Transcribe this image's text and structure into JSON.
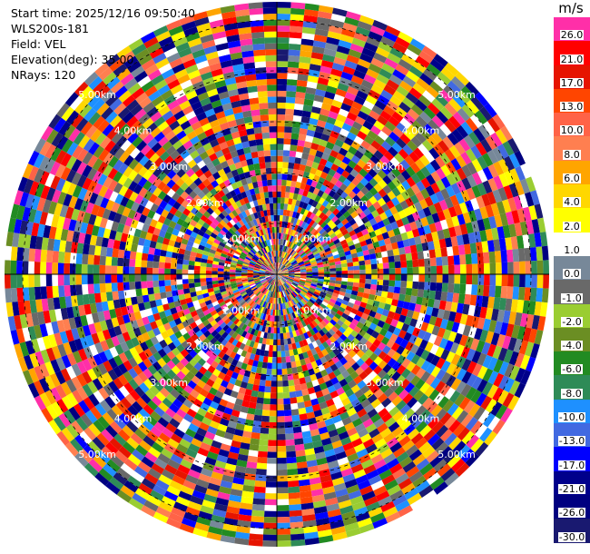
{
  "info": {
    "start_time": "Start time: 2025/12/16 09:50:40",
    "instrument": "WLS200s-181",
    "field": "Field: VEL",
    "elevation": "Elevation(deg): 35.00",
    "nrays": "NRays: 120"
  },
  "colorbar": {
    "unit": "m/s",
    "levels": [
      {
        "label": "26.0",
        "color": "#ff2fa8"
      },
      {
        "label": "21.0",
        "color": "#ff0000"
      },
      {
        "label": "17.0",
        "color": "#e61400"
      },
      {
        "label": "13.0",
        "color": "#ff4500"
      },
      {
        "label": "10.0",
        "color": "#ff6347"
      },
      {
        "label": "8.0",
        "color": "#ff7f50"
      },
      {
        "label": "6.0",
        "color": "#ffa500"
      },
      {
        "label": "4.0",
        "color": "#ffd700"
      },
      {
        "label": "2.0",
        "color": "#ffff00"
      },
      {
        "label": "1.0",
        "color": "#ffffff"
      },
      {
        "label": "0.0",
        "color": "#778899"
      },
      {
        "label": "-1.0",
        "color": "#696969"
      },
      {
        "label": "-2.0",
        "color": "#9acd32"
      },
      {
        "label": "-4.0",
        "color": "#6b8e23"
      },
      {
        "label": "-6.0",
        "color": "#228b22"
      },
      {
        "label": "-8.0",
        "color": "#2e8b57"
      },
      {
        "label": "-10.0",
        "color": "#1e90ff"
      },
      {
        "label": "-13.0",
        "color": "#4169e1"
      },
      {
        "label": "-17.0",
        "color": "#0000ff"
      },
      {
        "label": "-21.0",
        "color": "#00008b"
      },
      {
        "label": "-26.0",
        "color": "#000080"
      },
      {
        "label": "-30.0",
        "color": "#191970"
      }
    ]
  },
  "chart_data": {
    "type": "heatmap",
    "title": "",
    "field": "VEL",
    "units": "m/s",
    "projection": "polar PPI",
    "nrays": 120,
    "azimuth_range_deg": [
      0,
      360
    ],
    "range_rings_km": [
      "1.00km",
      "2.00km",
      "3.00km",
      "4.00km",
      "5.00km"
    ],
    "ring_label_azimuths_deg": [
      45,
      135,
      225,
      315
    ],
    "max_range_km": 5.0,
    "grid": true,
    "legend": "colorbar-right"
  }
}
